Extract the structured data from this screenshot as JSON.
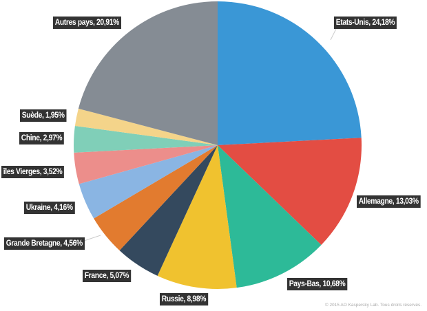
{
  "chart_data": {
    "type": "pie",
    "title": "",
    "categories": [
      "Etats-Unis",
      "Allemagne",
      "Pays-Bas",
      "Russie",
      "France",
      "Grande Bretagne",
      "Ukraine",
      "îles Vierges",
      "Chine",
      "Suède",
      "Autres pays"
    ],
    "values": [
      24.18,
      13.03,
      10.68,
      8.98,
      5.07,
      4.56,
      4.16,
      3.52,
      2.97,
      1.95,
      20.91
    ],
    "colors": [
      "#3a97d6",
      "#e34d43",
      "#2dba98",
      "#f0c22f",
      "#34495e",
      "#e27b2f",
      "#8ab5e3",
      "#ec8e8b",
      "#80cfb8",
      "#f4d48a",
      "#858c94"
    ],
    "labels": [
      "Etats-Unis, 24,18%",
      "Allemagne, 13,03%",
      "Pays-Bas, 10,68%",
      "Russie, 8,98%",
      "France, 5,07%",
      "Grande Bretagne, 4,56%",
      "Ukraine, 4,16%",
      "îles Vierges, 3,52%",
      "Chine, 2,97%",
      "Suède, 1,95%",
      "Autres pays, 20,91%"
    ],
    "start_angle_deg": 0,
    "direction": "clockwise",
    "legend": "none"
  },
  "copyright": "© 2015 AO Kaspersky Lab. Tous droits réservés."
}
